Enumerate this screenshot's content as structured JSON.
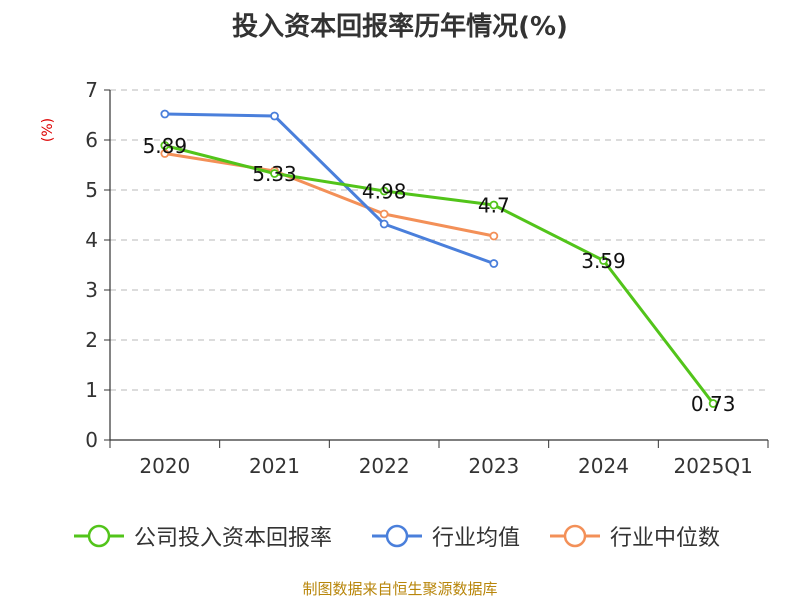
{
  "title": "投入资本回报率历年情况(%)",
  "source": "制图数据来自恒生聚源数据库",
  "chart_data": {
    "type": "line",
    "title": "投入资本回报率历年情况(%)",
    "ylabel": "(%)",
    "ylim": [
      0,
      7
    ],
    "yticks": [
      0,
      1,
      2,
      3,
      4,
      5,
      6,
      7
    ],
    "grid": true,
    "legend_position": "bottom",
    "categories": [
      "2020",
      "2021",
      "2022",
      "2023",
      "2024",
      "2025Q1"
    ],
    "series": [
      {
        "name": "公司投入资本回报率",
        "color": "#52c41a",
        "values": [
          5.89,
          5.33,
          4.98,
          4.7,
          3.59,
          0.73
        ],
        "labels": [
          "5.89",
          "5.33",
          "4.98",
          "4.7",
          "3.59",
          "0.73"
        ]
      },
      {
        "name": "行业均值",
        "color": "#4a7fdb",
        "values": [
          6.52,
          6.48,
          4.32,
          3.53,
          null,
          null
        ]
      },
      {
        "name": "行业中位数",
        "color": "#f39058",
        "values": [
          5.73,
          5.38,
          4.52,
          4.08,
          null,
          null
        ]
      }
    ]
  }
}
